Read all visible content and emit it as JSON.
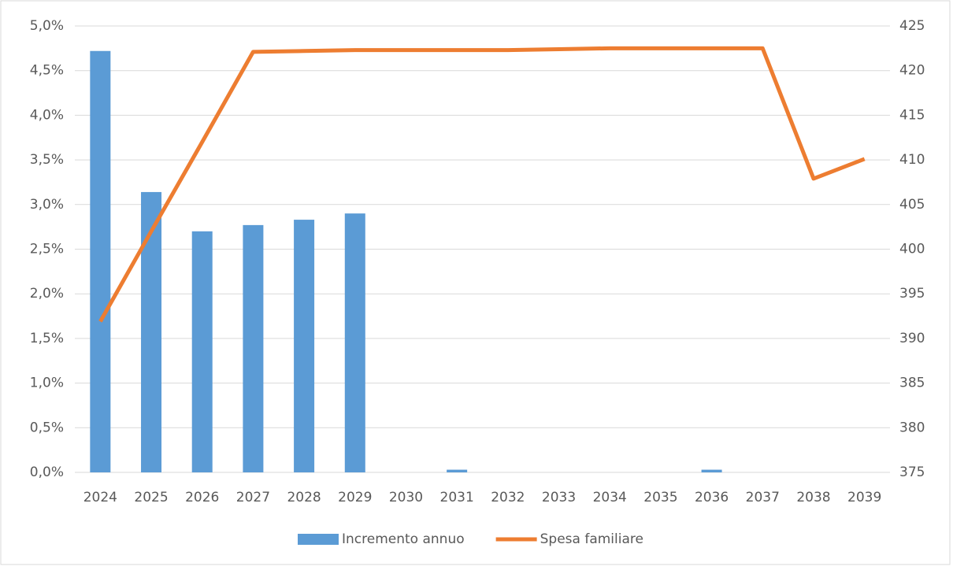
{
  "chart_data": {
    "type": "bar",
    "categories": [
      "2024",
      "2025",
      "2026",
      "2027",
      "2028",
      "2029",
      "2030",
      "2031",
      "2032",
      "2033",
      "2034",
      "2035",
      "2036",
      "2037",
      "2038",
      "2039"
    ],
    "series": [
      {
        "name": "Incremento annuo",
        "type": "bar",
        "color": "#5b9bd5",
        "axis": "y",
        "values": [
          4.72,
          3.14,
          2.7,
          2.77,
          2.83,
          2.9,
          0,
          0.03,
          0,
          0,
          0,
          0,
          0.03,
          0,
          0,
          0
        ]
      },
      {
        "name": "Spesa familiare",
        "type": "line",
        "color": "#ed7d31",
        "axis": "y2",
        "values": [
          391.9,
          402,
          412,
          422.1,
          422.2,
          422.3,
          422.3,
          422.3,
          422.3,
          422.4,
          422.5,
          422.5,
          422.5,
          422.5,
          407.9,
          410.1
        ]
      }
    ],
    "ylim": [
      0,
      5
    ],
    "yticks": [
      {
        "value": 0,
        "label": "0,0%"
      },
      {
        "value": 0.5,
        "label": "0,5%"
      },
      {
        "value": 1,
        "label": "1,0%"
      },
      {
        "value": 1.5,
        "label": "1,5%"
      },
      {
        "value": 2,
        "label": "2,0%"
      },
      {
        "value": 2.5,
        "label": "2,5%"
      },
      {
        "value": 3,
        "label": "3,0%"
      },
      {
        "value": 3.5,
        "label": "3,5%"
      },
      {
        "value": 4,
        "label": "4,0%"
      },
      {
        "value": 4.5,
        "label": "4,5%"
      },
      {
        "value": 5,
        "label": "5,0%"
      }
    ],
    "y2lim": [
      375,
      425
    ],
    "y2ticks": [
      375,
      380,
      385,
      390,
      395,
      400,
      405,
      410,
      415,
      420,
      425
    ],
    "grid": true,
    "legend": "bottom"
  }
}
